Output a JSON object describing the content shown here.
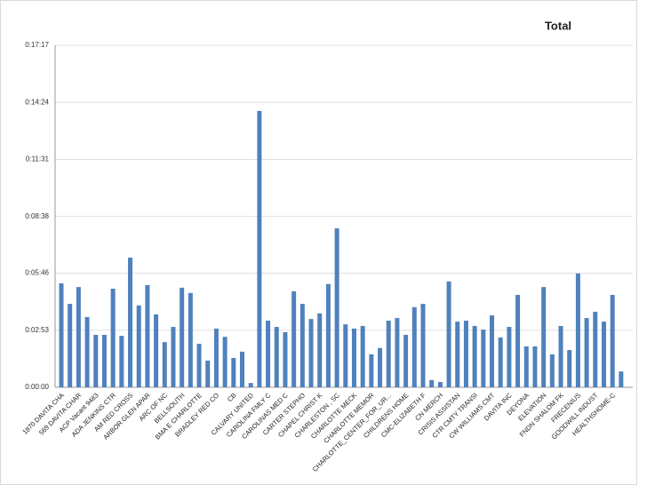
{
  "chart_data": {
    "type": "bar",
    "title": "Total",
    "categories": [
      "1870 DAVITA CHA",
      null,
      "569 DAVITA CHAR",
      null,
      "ACP Vacant 9483",
      null,
      "ADA JENKINS CTR",
      null,
      "AM RED CROSS",
      null,
      "ARBOR GLEN APAR",
      null,
      "ARC OF NC",
      null,
      "BELLSOUTH",
      null,
      "BMA E CHARLOTTE",
      null,
      "BRADLEY RED CO",
      null,
      "CB",
      null,
      "CALVARY UNITED",
      null,
      "CAROLINA FMLY C",
      null,
      "CAROLINAS MED C",
      null,
      "CARTER STEPHO",
      null,
      "CHAPEL CHRIST K",
      null,
      "CHARLESTON , SC",
      null,
      "CHARLOTTE MECK",
      null,
      "CHARLOTTE MEMOR",
      null,
      "CHARLOTTE_CENTER_FOR_UR...",
      null,
      "CHILDRENS HOME",
      null,
      "CMC-ELIZABETH F",
      null,
      "CN MERCH",
      null,
      "CRISIS ASSISTAN",
      null,
      "CTR CMTY TRANSI",
      null,
      "CW WILLIAMS CMT",
      null,
      "DAVITA INC",
      null,
      "DEYONA",
      null,
      "ELEVATION",
      null,
      "FNDN SHALOM FK",
      null,
      "FRECENIUS",
      null,
      "GOODWILL INDUST",
      null,
      "HEALTHSHOME-C",
      null
    ],
    "values": [
      315,
      253,
      304,
      213,
      159,
      159,
      299,
      156,
      393,
      248,
      310,
      221,
      137,
      183,
      302,
      286,
      132,
      81,
      178,
      153,
      89,
      108,
      13,
      838,
      202,
      183,
      167,
      291,
      253,
      207,
      224,
      313,
      482,
      191,
      178,
      186,
      100,
      119,
      202,
      210,
      159,
      243,
      253,
      22,
      16,
      321,
      199,
      202,
      186,
      175,
      218,
      151,
      183,
      280,
      124,
      124,
      304,
      100,
      186,
      113,
      345,
      210,
      229,
      199,
      280,
      48
    ],
    "color": "#4f81bd",
    "ylim": [
      0,
      1037
    ],
    "yticks": [
      {
        "value": 0,
        "label": "0:00:00"
      },
      {
        "value": 173,
        "label": "0:02:53"
      },
      {
        "value": 346,
        "label": "0:05:46"
      },
      {
        "value": 518,
        "label": "0:08:38"
      },
      {
        "value": 691,
        "label": "0:11:31"
      },
      {
        "value": 864,
        "label": "0:14:24"
      },
      {
        "value": 1037,
        "label": "0:17:17"
      }
    ],
    "grid": true
  }
}
